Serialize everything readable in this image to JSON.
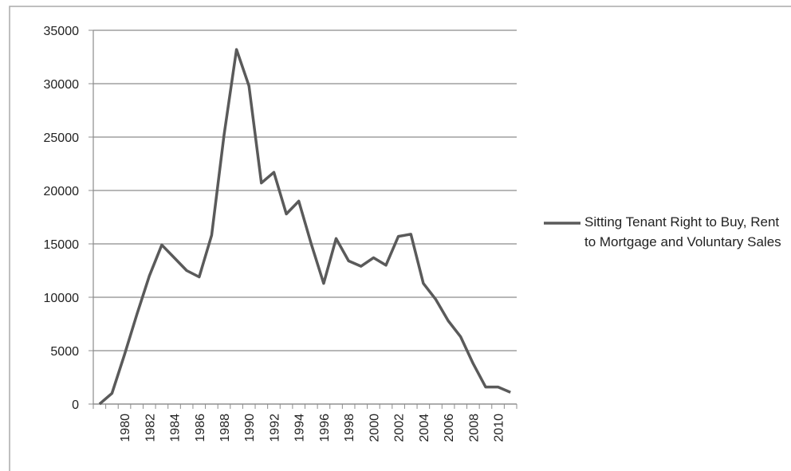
{
  "chart_data": {
    "type": "line",
    "categories": [
      null,
      null,
      "1980",
      null,
      "1982",
      null,
      "1984",
      null,
      "1986",
      null,
      "1988",
      null,
      "1990",
      null,
      "1992",
      null,
      "1994",
      null,
      "1996",
      null,
      "1998",
      null,
      "2000",
      null,
      "2002",
      null,
      "2004",
      null,
      "2006",
      null,
      "2008",
      null,
      "2010",
      null
    ],
    "series": [
      {
        "name": "Sitting Tenant Right to Buy, Rent to Mortgage and Voluntary Sales",
        "color": "#5a5a5a",
        "values": [
          0,
          1000,
          4600,
          8400,
          12000,
          14900,
          13700,
          12500,
          11900,
          15800,
          25200,
          33200,
          29800,
          20700,
          21700,
          17800,
          19000,
          15000,
          11300,
          15500,
          13400,
          12900,
          13700,
          13000,
          15700,
          15900,
          11300,
          9800,
          7800,
          6300,
          3800,
          1600,
          1600,
          1100
        ]
      }
    ],
    "ylim": [
      0,
      35000
    ],
    "yticks": [
      0,
      5000,
      10000,
      15000,
      20000,
      25000,
      30000,
      35000
    ],
    "grid": true,
    "legend": "right"
  }
}
